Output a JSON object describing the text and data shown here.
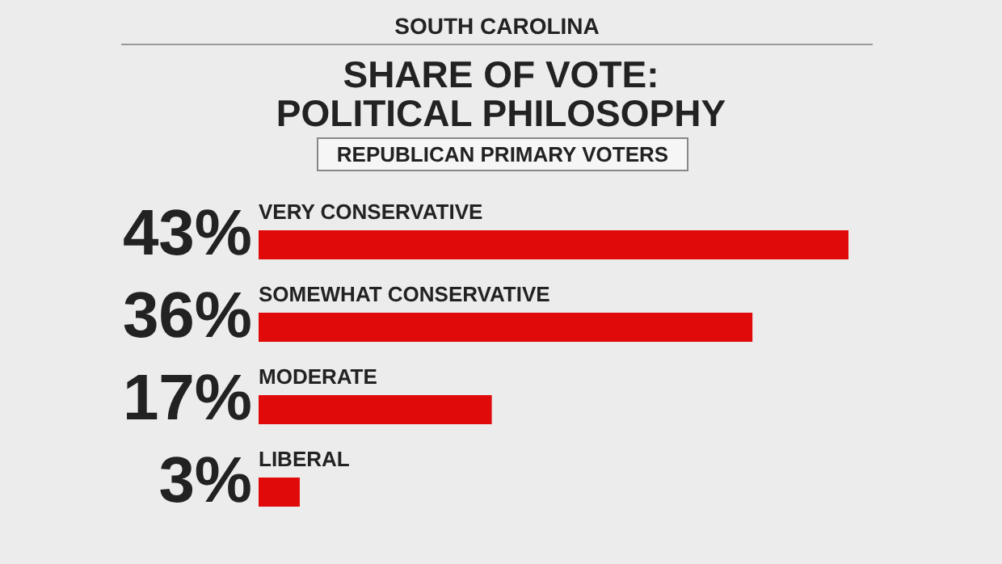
{
  "chart_data": {
    "type": "bar",
    "orientation": "horizontal",
    "title": "SHARE OF VOTE: POLITICAL PHILOSOPHY",
    "subtitle": "REPUBLICAN PRIMARY VOTERS",
    "annotations": [
      "SOUTH CAROLINA"
    ],
    "categories": [
      "VERY CONSERVATIVE",
      "SOMEWHAT CONSERVATIVE",
      "MODERATE",
      "LIBERAL"
    ],
    "values": [
      43,
      36,
      17,
      3
    ],
    "value_labels": [
      "43%",
      "36%",
      "17%",
      "3%"
    ],
    "color": "#e00a0a"
  }
}
